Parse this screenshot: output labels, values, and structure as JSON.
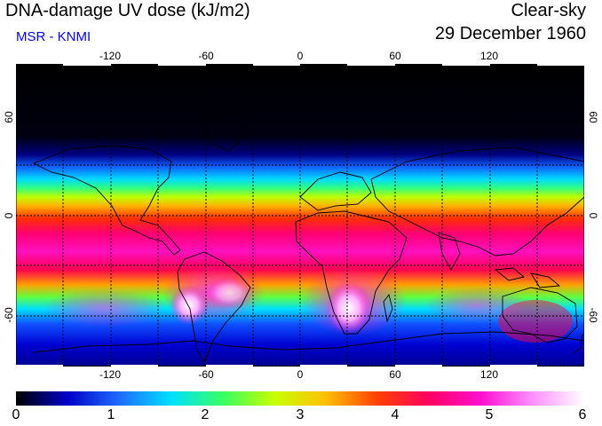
{
  "header": {
    "title": "DNA-damage UV dose (kJ/m2)",
    "subtitle": "MSR - KNMI",
    "condition": "Clear-sky",
    "date": "29 December 1960"
  },
  "map": {
    "projection": "equirectangular",
    "longitude_ticks": [
      "-120",
      "-60",
      "0",
      "60",
      "120"
    ],
    "latitude_ticks": [
      "60",
      "0",
      "-60"
    ],
    "gridlines": "dashed every 30 degrees"
  },
  "colorbar": {
    "min": 0,
    "max": 6,
    "labels": [
      "0",
      "1",
      "2",
      "3",
      "4",
      "5",
      "6"
    ],
    "colors": [
      "#000000",
      "#0000c8",
      "#1e6cff",
      "#00e0ff",
      "#38ff64",
      "#c8ff00",
      "#ffc000",
      "#ff4000",
      "#ff0060",
      "#ff10d0",
      "#ff90ff",
      "#ffffff"
    ]
  }
}
